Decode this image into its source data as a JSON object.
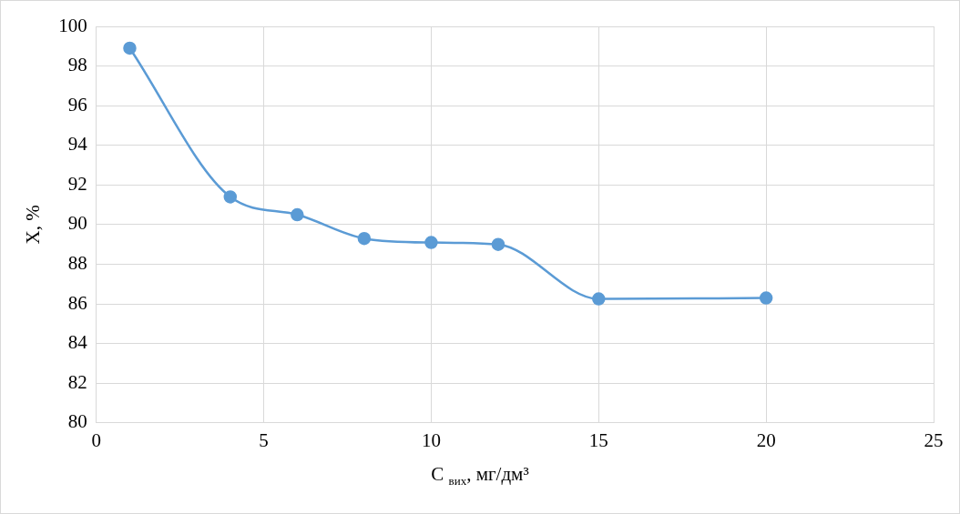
{
  "chart_data": {
    "type": "line",
    "xlabel": "C $_{вих}$, мг/дм³",
    "ylabel": "X, %",
    "x": [
      1,
      4,
      6,
      8,
      10,
      12,
      15,
      20
    ],
    "series": [
      {
        "color": "#5b9bd5",
        "values": [
          98.9,
          91.4,
          90.5,
          89.3,
          89.1,
          89.0,
          86.25,
          86.3
        ]
      }
    ],
    "xlim": [
      0,
      25
    ],
    "xticks": [
      0,
      5,
      10,
      15,
      20,
      25
    ],
    "ylim": [
      80,
      100
    ],
    "yticks": [
      80,
      82,
      84,
      86,
      88,
      90,
      92,
      94,
      96,
      98,
      100
    ],
    "grid": true,
    "marker": "circle",
    "line_style": "solid"
  }
}
